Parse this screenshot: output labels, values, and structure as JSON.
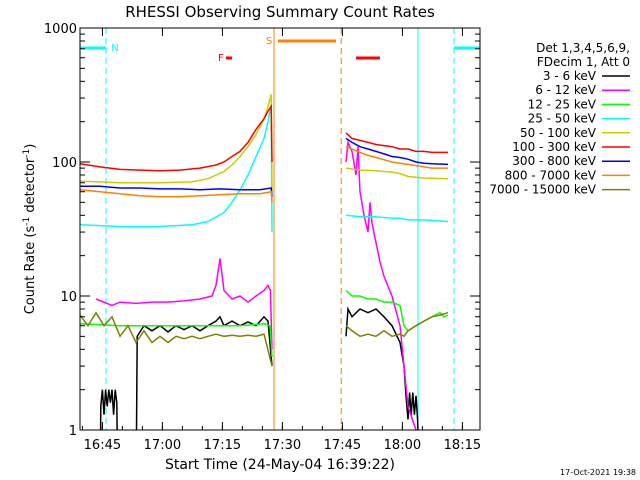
{
  "chart_data": {
    "type": "line",
    "title": "RHESSI Observing Summary Count Rates",
    "xlabel": "Start Time (24-May-04 16:39:22)",
    "ylabel_main": "Count Rate (s",
    "ylabel_sup1": "-1",
    "ylabel_mid": " detector",
    "ylabel_sup2": "-1",
    "ylabel_end": ")",
    "y_log": true,
    "ylim": [
      1,
      1000
    ],
    "xlim_min": [
      0,
      100
    ],
    "x_ticks": [
      {
        "label": "16:45",
        "min": 5.6
      },
      {
        "label": "17:00",
        "min": 20.6
      },
      {
        "label": "17:15",
        "min": 35.6
      },
      {
        "label": "17:30",
        "min": 50.6
      },
      {
        "label": "17:45",
        "min": 65.6
      },
      {
        "label": "18:00",
        "min": 80.6
      },
      {
        "label": "18:15",
        "min": 95.6
      }
    ],
    "y_ticks": [
      {
        "label": "1",
        "value": 1
      },
      {
        "label": "10",
        "value": 10
      },
      {
        "label": "100",
        "value": 100
      },
      {
        "label": "1000",
        "value": 1000
      }
    ],
    "legend_header": [
      "Det 1,3,4,5,6,9,",
      "FDecim 1, Att 0"
    ],
    "series": [
      {
        "name": "3 - 6 keV",
        "color": "#000000",
        "pre": [
          [
            0,
            0.3
          ],
          [
            5,
            0.3
          ],
          [
            5.2,
            1.5
          ],
          [
            5.6,
            2
          ],
          [
            6,
            1.3
          ],
          [
            6.4,
            2
          ],
          [
            6.8,
            1.5
          ],
          [
            7.2,
            2
          ],
          [
            7.6,
            1.6
          ],
          [
            8,
            2
          ],
          [
            8.4,
            1.3
          ],
          [
            8.8,
            2
          ],
          [
            9.2,
            1.6
          ],
          [
            9.5,
            0.3
          ],
          [
            14,
            0.3
          ],
          [
            14.3,
            5
          ],
          [
            16,
            6
          ],
          [
            18,
            5.5
          ],
          [
            20,
            6
          ],
          [
            22,
            5.4
          ],
          [
            24,
            6
          ],
          [
            26,
            5.6
          ],
          [
            28,
            6
          ],
          [
            30,
            5.5
          ],
          [
            32,
            6
          ],
          [
            34,
            6.5
          ],
          [
            35,
            7
          ],
          [
            36,
            6
          ],
          [
            38,
            6.5
          ],
          [
            40,
            6
          ],
          [
            42,
            6.4
          ],
          [
            44,
            6
          ],
          [
            46,
            7
          ],
          [
            47,
            6.5
          ],
          [
            48,
            3
          ]
        ],
        "post": [
          [
            66.5,
            5
          ],
          [
            67,
            8
          ],
          [
            68,
            7
          ],
          [
            70,
            8
          ],
          [
            72,
            7.5
          ],
          [
            74,
            8
          ],
          [
            76,
            7
          ],
          [
            78,
            6
          ],
          [
            80,
            4.5
          ],
          [
            81,
            3
          ],
          [
            81.5,
            1.8
          ],
          [
            82,
            1.2
          ],
          [
            82.4,
            1.9
          ],
          [
            82.8,
            1.3
          ],
          [
            83.2,
            1.9
          ],
          [
            83.6,
            1.3
          ],
          [
            84,
            1.8
          ],
          [
            84.4,
            1.2
          ],
          [
            85,
            0.3
          ],
          [
            100,
            0.3
          ]
        ]
      },
      {
        "name": "6 - 12 keV",
        "color": "#ff00ff",
        "pre": [
          [
            4,
            9.5
          ],
          [
            8,
            8.5
          ],
          [
            10,
            9
          ],
          [
            14,
            8.8
          ],
          [
            18,
            9
          ],
          [
            22,
            9
          ],
          [
            26,
            9.2
          ],
          [
            30,
            9.5
          ],
          [
            33,
            10
          ],
          [
            34,
            12
          ],
          [
            35,
            19
          ],
          [
            36,
            11
          ],
          [
            38,
            9.5
          ],
          [
            40,
            10
          ],
          [
            42,
            9
          ],
          [
            44,
            10
          ],
          [
            46,
            11
          ],
          [
            47,
            12
          ],
          [
            47.6,
            11
          ],
          [
            48,
            4
          ]
        ],
        "post": [
          [
            66.5,
            100
          ],
          [
            67,
            140
          ],
          [
            68,
            120
          ],
          [
            69,
            80
          ],
          [
            69.5,
            130
          ],
          [
            70,
            60
          ],
          [
            71,
            40
          ],
          [
            72,
            30
          ],
          [
            72.5,
            50
          ],
          [
            73,
            35
          ],
          [
            74,
            25
          ],
          [
            75,
            18
          ],
          [
            76,
            14
          ],
          [
            78,
            10
          ],
          [
            80,
            6
          ],
          [
            81,
            3
          ],
          [
            82,
            1.5
          ],
          [
            84,
            1
          ],
          [
            85,
            0.3
          ]
        ]
      },
      {
        "name": "12 - 25 keV",
        "color": "#00ff00",
        "pre": [
          [
            0,
            6.2
          ],
          [
            10,
            6
          ],
          [
            20,
            6
          ],
          [
            30,
            6
          ],
          [
            40,
            6
          ],
          [
            46,
            6.2
          ],
          [
            47.5,
            6
          ],
          [
            48,
            3.5
          ]
        ],
        "post": [
          [
            66.5,
            11
          ],
          [
            68,
            10
          ],
          [
            70,
            10
          ],
          [
            72,
            9.5
          ],
          [
            74,
            9.5
          ],
          [
            76,
            9
          ],
          [
            78,
            9
          ],
          [
            80,
            8.5
          ],
          [
            81,
            6
          ],
          [
            82,
            5.5
          ],
          [
            84,
            6
          ],
          [
            86,
            6.5
          ],
          [
            88,
            7
          ],
          [
            90,
            7.5
          ],
          [
            91,
            7
          ],
          [
            92,
            7.2
          ]
        ]
      },
      {
        "name": "25 - 50 keV",
        "color": "#00ffff",
        "pre": [
          [
            0,
            34
          ],
          [
            10,
            33
          ],
          [
            20,
            33
          ],
          [
            28,
            34
          ],
          [
            32,
            36
          ],
          [
            36,
            42
          ],
          [
            38,
            50
          ],
          [
            40,
            62
          ],
          [
            42,
            80
          ],
          [
            44,
            110
          ],
          [
            46,
            150
          ],
          [
            47,
            200
          ],
          [
            47.8,
            270
          ],
          [
            48,
            30
          ]
        ],
        "post": [
          [
            66.5,
            40
          ],
          [
            70,
            39
          ],
          [
            74,
            39
          ],
          [
            78,
            38
          ],
          [
            80,
            38
          ],
          [
            82,
            37
          ],
          [
            86,
            37
          ],
          [
            92,
            36
          ]
        ]
      },
      {
        "name": "50 - 100 keV",
        "color": "#cccc00",
        "pre": [
          [
            0,
            72
          ],
          [
            10,
            70
          ],
          [
            20,
            70
          ],
          [
            28,
            71
          ],
          [
            32,
            75
          ],
          [
            36,
            85
          ],
          [
            38,
            95
          ],
          [
            40,
            110
          ],
          [
            42,
            130
          ],
          [
            44,
            160
          ],
          [
            46,
            210
          ],
          [
            47,
            260
          ],
          [
            47.8,
            320
          ],
          [
            48,
            60
          ]
        ],
        "post": [
          [
            66.5,
            90
          ],
          [
            70,
            87
          ],
          [
            74,
            86
          ],
          [
            78,
            84
          ],
          [
            80,
            82
          ],
          [
            82,
            78
          ],
          [
            86,
            76
          ],
          [
            92,
            75
          ]
        ]
      },
      {
        "name": "100 - 300 keV",
        "color": "#ff0000",
        "pre": [
          [
            0,
            97
          ],
          [
            5,
            92
          ],
          [
            10,
            88
          ],
          [
            15,
            87
          ],
          [
            20,
            86
          ],
          [
            25,
            87
          ],
          [
            30,
            90
          ],
          [
            34,
            95
          ],
          [
            36,
            100
          ],
          [
            38,
            110
          ],
          [
            40,
            120
          ],
          [
            42,
            140
          ],
          [
            44,
            175
          ],
          [
            46,
            210
          ],
          [
            47,
            240
          ],
          [
            47.8,
            260
          ],
          [
            48,
            100
          ]
        ],
        "post": [
          [
            66.5,
            165
          ],
          [
            68,
            150
          ],
          [
            70,
            145
          ],
          [
            72,
            140
          ],
          [
            74,
            135
          ],
          [
            78,
            130
          ],
          [
            80,
            125
          ],
          [
            82,
            125
          ],
          [
            84,
            120
          ],
          [
            86,
            120
          ],
          [
            88,
            118
          ],
          [
            92,
            118
          ]
        ]
      },
      {
        "name": "300 - 800 keV",
        "color": "#0000ff",
        "pre": [
          [
            0,
            66
          ],
          [
            5,
            66
          ],
          [
            10,
            64
          ],
          [
            15,
            64
          ],
          [
            20,
            63
          ],
          [
            25,
            63
          ],
          [
            30,
            62
          ],
          [
            35,
            63
          ],
          [
            40,
            62
          ],
          [
            45,
            62
          ],
          [
            47.8,
            64
          ],
          [
            48,
            55
          ]
        ],
        "post": [
          [
            66.5,
            150
          ],
          [
            68,
            140
          ],
          [
            70,
            130
          ],
          [
            72,
            125
          ],
          [
            74,
            120
          ],
          [
            76,
            115
          ],
          [
            78,
            110
          ],
          [
            80,
            108
          ],
          [
            82,
            105
          ],
          [
            84,
            100
          ],
          [
            86,
            98
          ],
          [
            88,
            97
          ],
          [
            92,
            96
          ]
        ]
      },
      {
        "name": "800 - 7000 keV",
        "color": "#ff8000",
        "pre": [
          [
            0,
            62
          ],
          [
            5,
            60
          ],
          [
            10,
            58
          ],
          [
            15,
            56
          ],
          [
            20,
            55
          ],
          [
            25,
            55
          ],
          [
            30,
            56
          ],
          [
            35,
            57
          ],
          [
            40,
            58
          ],
          [
            45,
            58
          ],
          [
            47.8,
            60
          ],
          [
            48,
            50
          ]
        ],
        "post": [
          [
            66.5,
            130
          ],
          [
            68,
            125
          ],
          [
            70,
            118
          ],
          [
            72,
            112
          ],
          [
            74,
            108
          ],
          [
            76,
            104
          ],
          [
            78,
            100
          ],
          [
            80,
            98
          ],
          [
            82,
            96
          ],
          [
            84,
            94
          ],
          [
            86,
            92
          ],
          [
            88,
            90
          ],
          [
            92,
            90
          ]
        ]
      },
      {
        "name": "7000 - 15000 keV",
        "color": "#808000",
        "pre": [
          [
            0,
            7.2
          ],
          [
            2,
            6
          ],
          [
            4,
            7.5
          ],
          [
            6,
            6
          ],
          [
            8,
            7
          ],
          [
            10,
            5
          ],
          [
            12,
            6
          ],
          [
            14,
            4.5
          ],
          [
            16,
            5.5
          ],
          [
            18,
            4.5
          ],
          [
            20,
            5
          ],
          [
            22,
            4.5
          ],
          [
            24,
            5
          ],
          [
            26,
            4.8
          ],
          [
            28,
            5
          ],
          [
            30,
            4.8
          ],
          [
            32,
            5
          ],
          [
            34,
            5.2
          ],
          [
            36,
            5
          ],
          [
            38,
            5.1
          ],
          [
            40,
            5
          ],
          [
            42,
            5.1
          ],
          [
            44,
            5
          ],
          [
            46,
            5.2
          ],
          [
            48,
            3
          ]
        ],
        "post": [
          [
            66.5,
            6
          ],
          [
            68,
            5.5
          ],
          [
            70,
            5
          ],
          [
            72,
            5.2
          ],
          [
            74,
            5
          ],
          [
            76,
            5.5
          ],
          [
            78,
            5
          ],
          [
            80,
            5.2
          ],
          [
            81,
            5
          ],
          [
            82,
            5.5
          ],
          [
            84,
            6
          ],
          [
            86,
            6.5
          ],
          [
            88,
            7
          ],
          [
            90,
            7.2
          ],
          [
            92,
            7.5
          ]
        ]
      }
    ],
    "flag_labels": {
      "n": "N",
      "f": "F",
      "s": "S"
    },
    "flags": {
      "night_bars": [
        [
          0,
          6.5
        ],
        [
          93.5,
          100
        ]
      ],
      "flare_bar": [
        36.5,
        38
      ],
      "saa_bar": [
        49.5,
        64
      ],
      "red_bar2": [
        69,
        75
      ]
    },
    "vlines": {
      "cyan_dashed": [
        6.5,
        93.5
      ],
      "cyan_solid": [
        84.5
      ],
      "orange_solid": [
        48.5
      ],
      "orange_dashed": [
        65.3
      ]
    }
  },
  "footer_date": "17-Oct-2021 19:38"
}
